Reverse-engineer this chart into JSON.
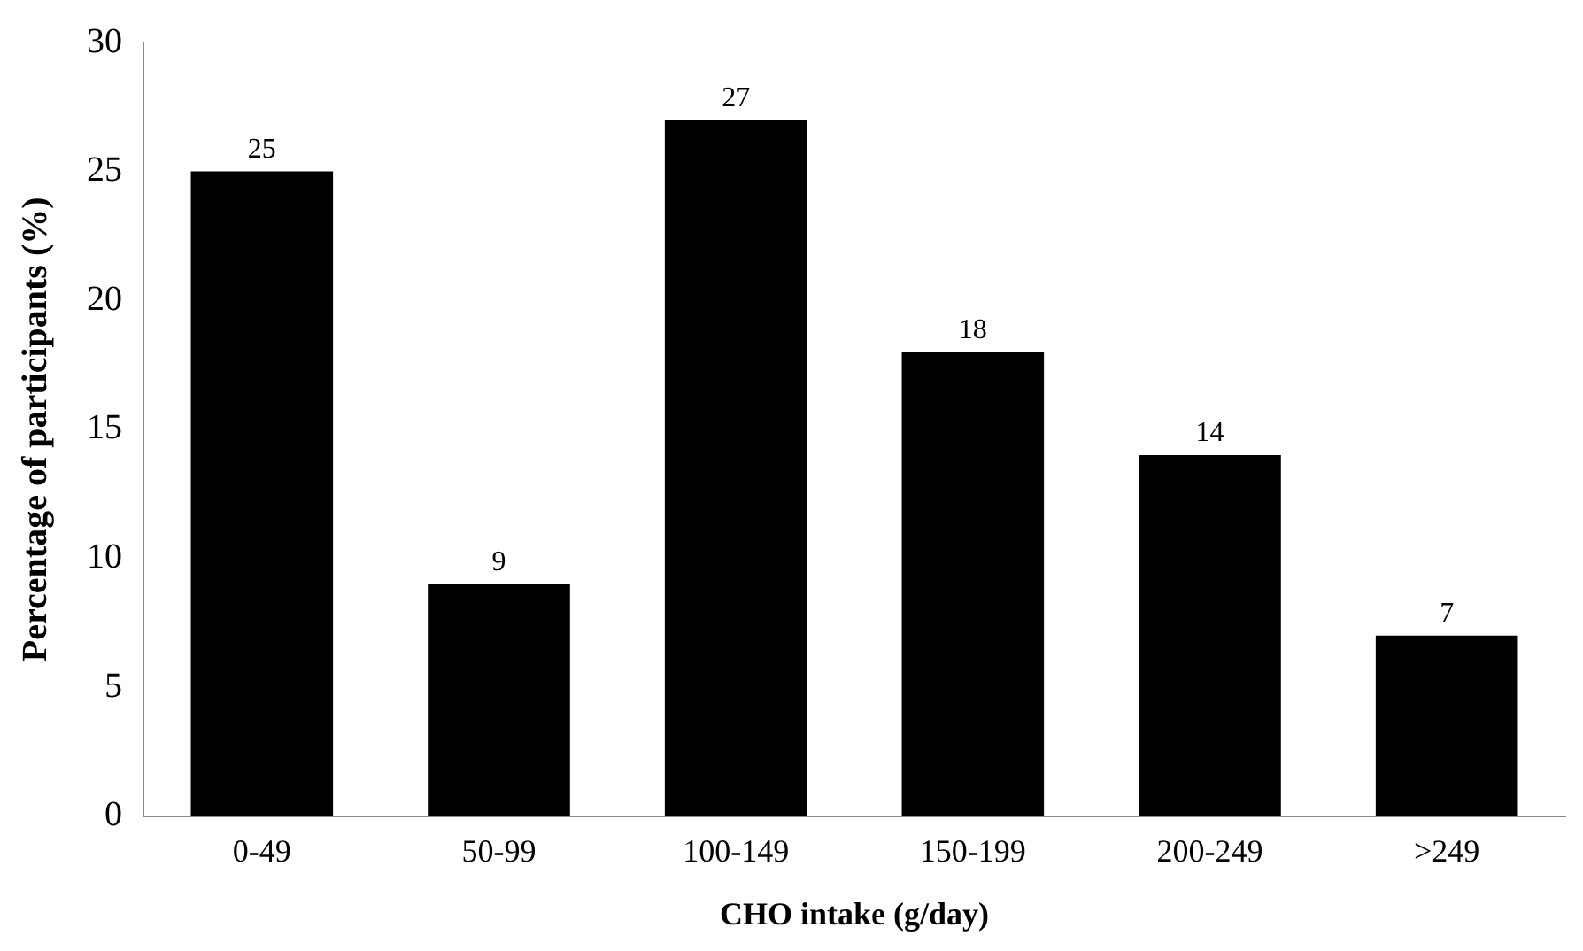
{
  "chart_data": {
    "type": "bar",
    "xlabel": "CHO intake (g/day)",
    "ylabel": "Percentage of participants (%)",
    "categories": [
      "0-49",
      "50-99",
      "100-149",
      "150-199",
      "200-249",
      ">249"
    ],
    "values": [
      25,
      9,
      27,
      18,
      14,
      7
    ],
    "data_labels": true,
    "color": "#000000",
    "ylim": [
      0,
      30
    ],
    "yticks": [
      0,
      5,
      10,
      15,
      20,
      25,
      30
    ],
    "grid": false,
    "legend": false
  }
}
